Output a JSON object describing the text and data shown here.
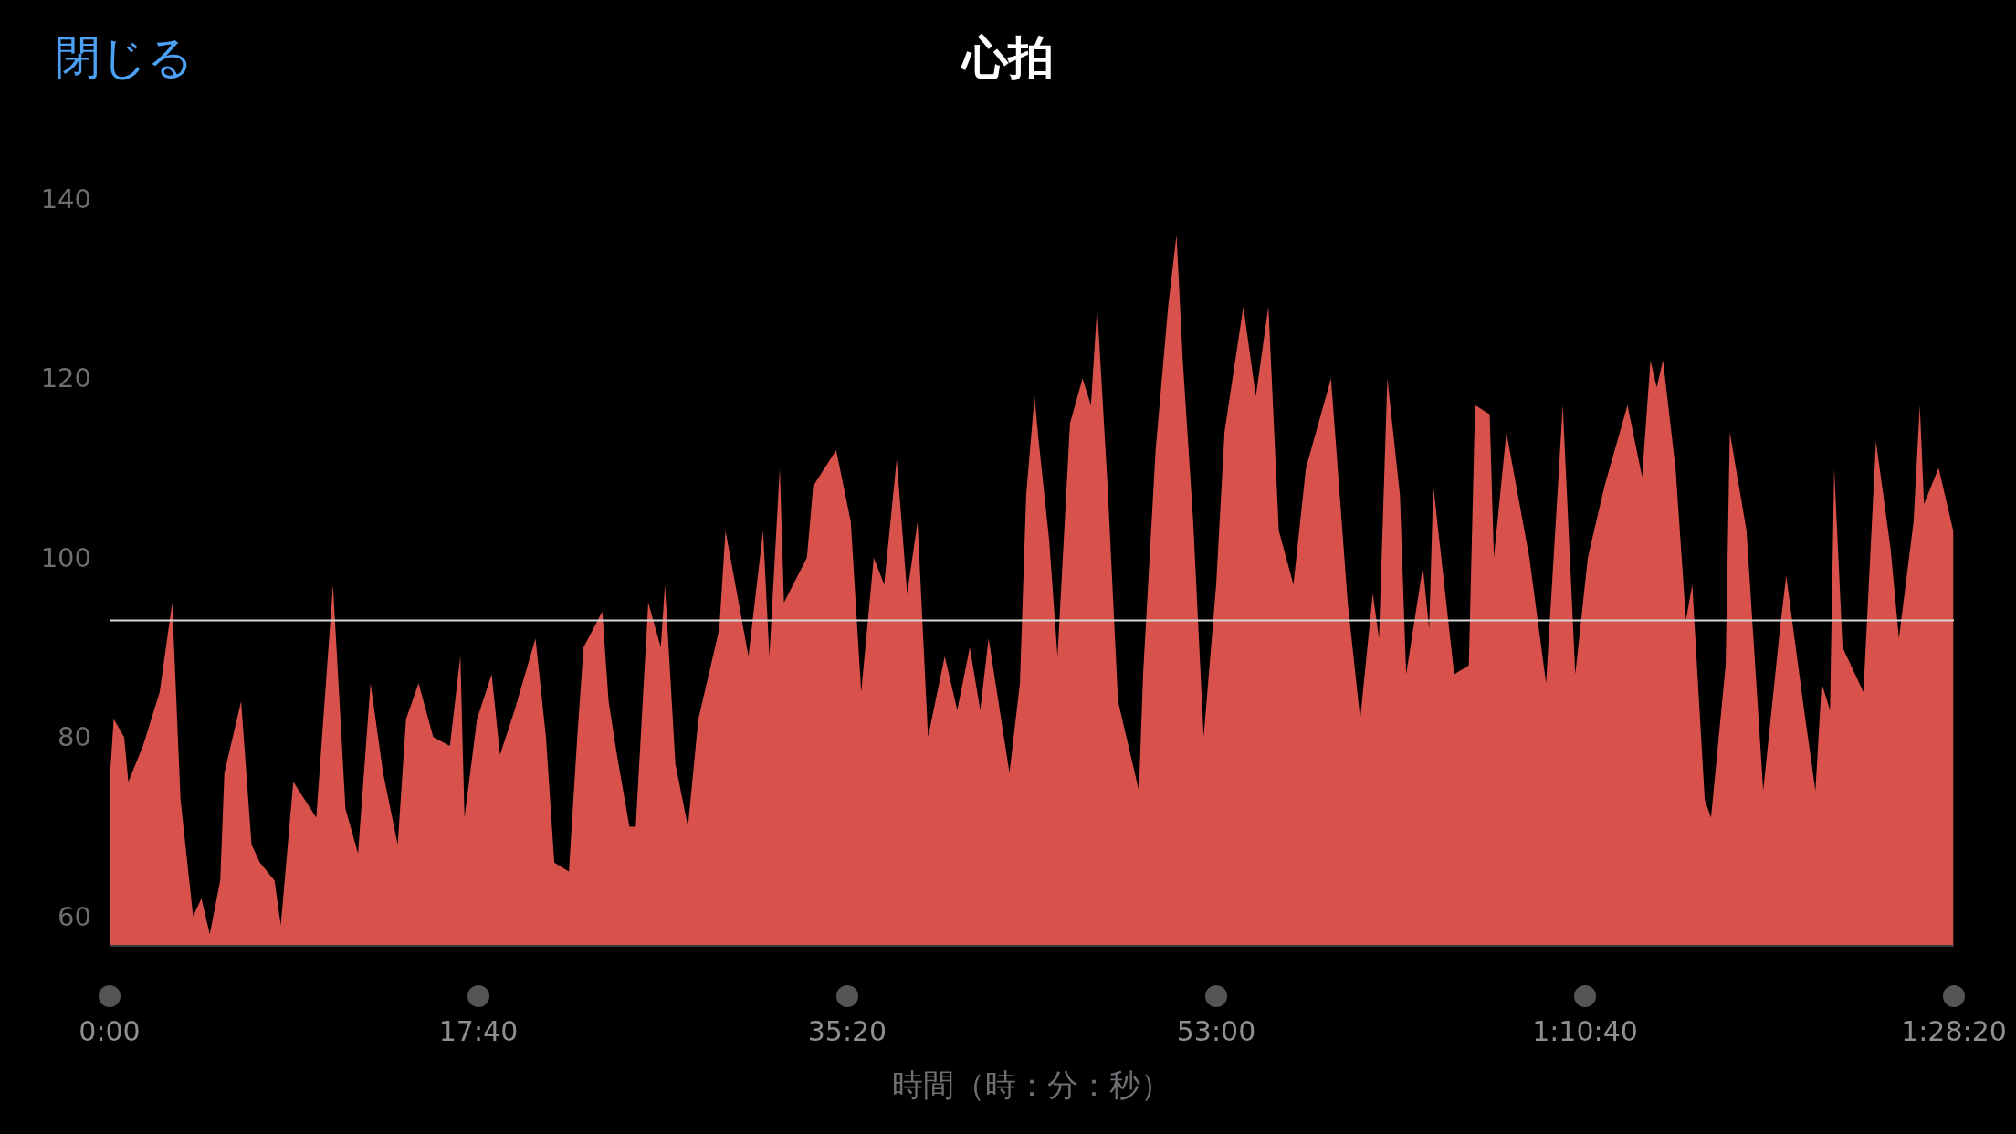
{
  "chart_data": {
    "type": "area",
    "title": "心拍",
    "xlabel": "時間（時：分：秒）",
    "annotations": [
      "閉じる"
    ],
    "color": "#d9514b",
    "x": [
      0,
      0.2,
      0.7,
      0.9,
      1.6,
      2.4,
      3.0,
      3.4,
      4.0,
      4.4,
      4.8,
      5.3,
      5.5,
      6.3,
      6.8,
      7.2,
      7.9,
      8.2,
      8.8,
      9.9,
      10.7,
      11.3,
      11.9,
      12.5,
      13.1,
      13.8,
      14.2,
      14.8,
      15.5,
      16.3,
      16.8,
      17.0,
      17.6,
      18.3,
      18.7,
      19.4,
      20.4,
      20.9,
      21.3,
      22.0,
      22.4,
      22.7,
      23.6,
      23.9,
      24.3,
      24.9,
      25.2,
      25.8,
      26.4,
      26.6,
      27.1,
      27.7,
      28.2,
      29.2,
      29.5,
      30.6,
      31.3,
      31.6,
      32.1,
      32.3,
      33.4,
      33.7,
      34.8,
      35.5,
      36.0,
      36.6,
      37.1,
      37.7,
      38.2,
      38.7,
      39.2,
      40.0,
      40.6,
      41.2,
      41.7,
      42.1,
      43.1,
      43.6,
      43.9,
      44.3,
      44.5,
      45.0,
      45.4,
      46.0,
      46.6,
      47.0,
      47.3,
      47.8,
      48.3,
      49.3,
      49.5,
      50.1,
      50.7,
      51.1,
      51.4,
      51.9,
      52.4,
      53.0,
      53.4,
      54.3,
      54.9,
      55.5,
      56.0,
      56.7,
      57.3,
      58.5,
      59.3,
      59.9,
      60.5,
      60.8,
      61.2,
      61.8,
      62.1,
      62.9,
      63.2,
      63.4,
      64.4,
      65.1,
      65.4,
      66.1,
      66.3,
      66.9,
      68.0,
      68.8,
      69.6,
      70.2,
      70.8,
      71.6,
      72.7,
      73.4,
      73.8,
      74.1,
      74.4,
      75.0,
      75.5,
      75.8,
      76.4,
      76.7,
      77.4,
      77.6,
      78.4,
      79.2,
      80.0,
      80.3,
      81.1,
      81.7,
      82.0,
      82.4,
      82.6,
      83.0,
      84.0,
      84.6,
      85.3,
      85.7,
      86.4,
      86.7,
      86.9,
      87.6,
      88.3
    ],
    "values": [
      75,
      82,
      80,
      75,
      79,
      85,
      95,
      73,
      60,
      62,
      58,
      64,
      76,
      84,
      68,
      66,
      64,
      59,
      75,
      71,
      97,
      72,
      67,
      86,
      76,
      68,
      82,
      86,
      80,
      79,
      89,
      71,
      82,
      87,
      78,
      83,
      91,
      80,
      66,
      65,
      80,
      90,
      94,
      84,
      78,
      70,
      70,
      95,
      90,
      97,
      77,
      70,
      82,
      92,
      103,
      89,
      103,
      89,
      110,
      95,
      100,
      108,
      112,
      104,
      85,
      100,
      97,
      111,
      96,
      104,
      80,
      89,
      83,
      90,
      83,
      91,
      76,
      86,
      107,
      118,
      113,
      102,
      89,
      115,
      120,
      117,
      128,
      108,
      84,
      74,
      87,
      112,
      128,
      136,
      122,
      104,
      80,
      97,
      114,
      128,
      118,
      128,
      103,
      97,
      110,
      120,
      95,
      82,
      96,
      91,
      120,
      107,
      87,
      99,
      92,
      108,
      87,
      88,
      117,
      116,
      100,
      114,
      100,
      86,
      117,
      87,
      100,
      108,
      117,
      109,
      122,
      119,
      122,
      110,
      93,
      97,
      73,
      71,
      88,
      114,
      103,
      74,
      92,
      98,
      84,
      74,
      86,
      83,
      110,
      90,
      85,
      113,
      101,
      91,
      104,
      117,
      106,
      110,
      103
    ],
    "xlim": [
      0,
      88.333
    ],
    "xticks": [
      {
        "value": 0,
        "label": "0:00"
      },
      {
        "value": 17.667,
        "label": "17:40"
      },
      {
        "value": 35.333,
        "label": "35:20"
      },
      {
        "value": 53,
        "label": "53:00"
      },
      {
        "value": 70.667,
        "label": "1:10:40"
      },
      {
        "value": 88.333,
        "label": "1:28:20"
      }
    ],
    "ylim": [
      56.7,
      140
    ],
    "yticks": [
      60,
      80,
      100,
      120,
      140
    ],
    "ref_lines": [
      {
        "axis": "y",
        "value": 93,
        "color": "#d8d8d8"
      }
    ],
    "grid": false
  }
}
